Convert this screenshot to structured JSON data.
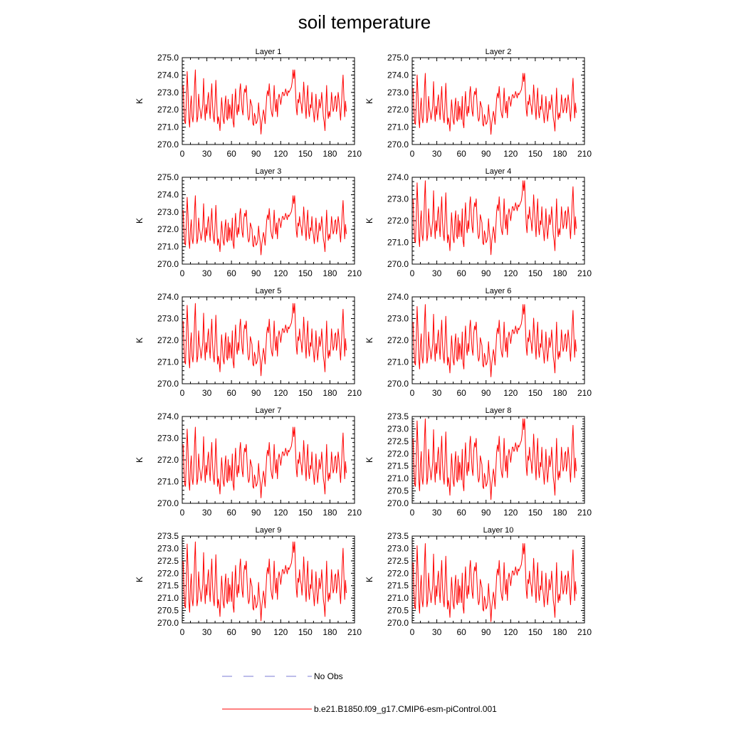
{
  "colors": {
    "model": "#ff0000",
    "obs": "#7b7bd6"
  },
  "chart_data": {
    "type": "line",
    "title": "soil temperature",
    "xticks": [
      "0",
      "30",
      "60",
      "90",
      "120",
      "150",
      "180",
      "210"
    ],
    "xlim": [
      0,
      210
    ],
    "ylabel": "K",
    "legend": {
      "obs": "No Obs",
      "model": "b.e21.B1850.f09_g17.CMIP6-esm-piControl.001"
    },
    "panels": [
      {
        "title": "Layer 1",
        "ylim": [
          270,
          275
        ],
        "yticks": [
          "270.0",
          "271.0",
          "272.0",
          "273.0",
          "274.0",
          "275.0"
        ],
        "amp": 1.0,
        "offset": 0.0
      },
      {
        "title": "Layer 2",
        "ylim": [
          270,
          275
        ],
        "yticks": [
          "270.0",
          "271.0",
          "272.0",
          "273.0",
          "274.0",
          "275.0"
        ],
        "amp": 0.95,
        "offset": -0.1
      },
      {
        "title": "Layer 3",
        "ylim": [
          270,
          275
        ],
        "yticks": [
          "270.0",
          "271.0",
          "272.0",
          "273.0",
          "274.0",
          "275.0"
        ],
        "amp": 0.92,
        "offset": -0.2
      },
      {
        "title": "Layer 4",
        "ylim": [
          270,
          274
        ],
        "yticks": [
          "270.0",
          "271.0",
          "272.0",
          "273.0",
          "274.0"
        ],
        "amp": 0.92,
        "offset": -0.3
      },
      {
        "title": "Layer 5",
        "ylim": [
          270,
          274
        ],
        "yticks": [
          "270.0",
          "271.0",
          "272.0",
          "273.0",
          "274.0"
        ],
        "amp": 0.9,
        "offset": -0.4
      },
      {
        "title": "Layer 6",
        "ylim": [
          270,
          274
        ],
        "yticks": [
          "270.0",
          "271.0",
          "272.0",
          "273.0",
          "274.0"
        ],
        "amp": 0.9,
        "offset": -0.45
      },
      {
        "title": "Layer 7",
        "ylim": [
          270,
          274
        ],
        "yticks": [
          "270.0",
          "271.0",
          "272.0",
          "273.0",
          "274.0"
        ],
        "amp": 0.88,
        "offset": -0.55
      },
      {
        "title": "Layer 8",
        "ylim": [
          270,
          273.5
        ],
        "yticks": [
          "270.0",
          "270.5",
          "271.0",
          "271.5",
          "272.0",
          "272.5",
          "273.0",
          "273.5"
        ],
        "amp": 0.88,
        "offset": -0.65
      },
      {
        "title": "Layer 9",
        "ylim": [
          270,
          273.5
        ],
        "yticks": [
          "270.0",
          "270.5",
          "271.0",
          "271.5",
          "272.0",
          "272.5",
          "273.0",
          "273.5"
        ],
        "amp": 0.86,
        "offset": -0.75
      },
      {
        "title": "Layer 10",
        "ylim": [
          270,
          273.5
        ],
        "yticks": [
          "270.0",
          "270.5",
          "271.0",
          "271.5",
          "272.0",
          "272.5",
          "273.0",
          "273.5"
        ],
        "amp": 0.85,
        "offset": -0.8
      }
    ],
    "base_series": {
      "x_start": 1,
      "x_step": 1,
      "values": [
        273.4,
        272.2,
        271.3,
        271.2,
        272.6,
        274.2,
        273.1,
        271.5,
        271.0,
        272.2,
        272.8,
        271.6,
        271.3,
        272.0,
        273.4,
        274.3,
        272.4,
        271.3,
        271.6,
        272.9,
        272.2,
        271.9,
        271.5,
        271.9,
        272.3,
        273.8,
        272.2,
        271.4,
        272.3,
        271.8,
        272.6,
        273.0,
        272.1,
        271.5,
        272.7,
        273.5,
        272.2,
        271.6,
        271.3,
        272.4,
        273.7,
        272.5,
        271.2,
        271.6,
        271.3,
        270.8,
        271.8,
        272.7,
        272.0,
        271.4,
        271.2,
        272.3,
        272.8,
        271.6,
        271.4,
        272.6,
        271.5,
        272.3,
        272.0,
        271.5,
        272.9,
        271.3,
        271.0,
        272.4,
        273.2,
        272.1,
        271.7,
        272.3,
        271.9,
        273.1,
        273.5,
        272.6,
        272.0,
        271.7,
        272.8,
        273.2,
        273.0,
        273.4,
        272.5,
        271.7,
        271.4,
        271.6,
        272.6,
        272.4,
        272.2,
        271.2,
        271.1,
        271.8,
        271.6,
        271.2,
        271.3,
        271.5,
        272.4,
        271.8,
        271.4,
        270.6,
        271.3,
        271.6,
        272.0,
        271.7,
        271.2,
        272.0,
        272.8,
        273.1,
        272.8,
        273.5,
        272.8,
        272.1,
        271.8,
        271.6,
        272.3,
        273.4,
        272.4,
        271.9,
        272.6,
        271.6,
        272.6,
        272.9,
        272.7,
        272.3,
        272.6,
        273.0,
        273.0,
        272.8,
        272.9,
        273.2,
        273.0,
        272.8,
        273.1,
        273.0,
        273.1,
        273.2,
        273.3,
        273.6,
        274.3,
        273.8,
        274.3,
        273.2,
        272.1,
        271.7,
        272.6,
        272.4,
        273.0,
        272.5,
        272.3,
        271.8,
        272.5,
        273.6,
        272.8,
        272.1,
        271.5,
        272.7,
        273.4,
        272.0,
        271.6,
        272.3,
        272.1,
        273.0,
        272.2,
        271.8,
        271.3,
        272.0,
        272.9,
        272.0,
        271.4,
        271.9,
        272.6,
        272.1,
        272.4,
        273.0,
        272.3,
        271.6,
        271.3,
        270.8,
        272.2,
        273.4,
        272.0,
        271.5,
        271.9,
        271.6,
        272.1,
        273.0,
        272.4,
        271.9,
        272.1,
        272.7,
        272.8,
        271.9,
        272.3,
        273.0,
        272.6,
        272.0,
        271.4,
        272.3,
        273.2,
        274.0,
        272.8,
        271.6,
        272.5,
        271.9
      ]
    }
  }
}
